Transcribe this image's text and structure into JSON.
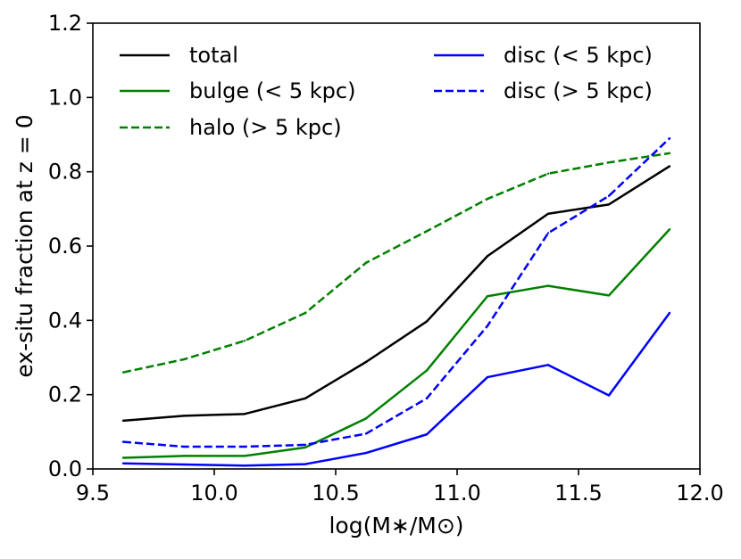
{
  "chart_data": {
    "type": "line",
    "title": "",
    "xlabel": "log(M∗/M⊙)",
    "ylabel": "ex-situ fraction at z = 0",
    "xlim": [
      9.5,
      12.0
    ],
    "ylim": [
      0.0,
      1.2
    ],
    "x_ticks": [
      9.5,
      10.0,
      10.5,
      11.0,
      11.5,
      12.0
    ],
    "x_tick_labels": [
      "9.5",
      "10.0",
      "10.5",
      "11.0",
      "11.5",
      "12.0"
    ],
    "y_ticks": [
      0.0,
      0.2,
      0.4,
      0.6,
      0.8,
      1.0,
      1.2
    ],
    "y_tick_labels": [
      "0.0",
      "0.2",
      "0.4",
      "0.6",
      "0.8",
      "1.0",
      "1.2"
    ],
    "grid": false,
    "legend_position": "top",
    "x": [
      9.625,
      9.875,
      10.125,
      10.375,
      10.625,
      10.875,
      11.125,
      11.375,
      11.625,
      11.875
    ],
    "series": [
      {
        "id": "total",
        "name": "total",
        "color": "#000000",
        "dash": "solid",
        "values": [
          0.13,
          0.143,
          0.148,
          0.19,
          0.288,
          0.397,
          0.573,
          0.687,
          0.712,
          0.815
        ]
      },
      {
        "id": "bulge",
        "name": "bulge (< 5 kpc)",
        "color": "#008000",
        "dash": "solid",
        "values": [
          0.03,
          0.035,
          0.035,
          0.058,
          0.136,
          0.265,
          0.465,
          0.493,
          0.467,
          0.645
        ]
      },
      {
        "id": "halo",
        "name": "halo (> 5 kpc)",
        "color": "#008000",
        "dash": "dashed",
        "values": [
          0.26,
          0.295,
          0.345,
          0.42,
          0.555,
          0.64,
          0.727,
          0.795,
          0.825,
          0.85
        ]
      },
      {
        "id": "disc-inner",
        "name": "disc (< 5 kpc)",
        "color": "#0000ff",
        "dash": "solid",
        "values": [
          0.015,
          0.012,
          0.009,
          0.013,
          0.043,
          0.093,
          0.247,
          0.28,
          0.198,
          0.42
        ]
      },
      {
        "id": "disc-outer",
        "name": "disc (> 5 kpc)",
        "color": "#0000ff",
        "dash": "dashed",
        "values": [
          0.073,
          0.06,
          0.06,
          0.065,
          0.095,
          0.19,
          0.385,
          0.635,
          0.735,
          0.89
        ]
      }
    ],
    "legend": {
      "columns": [
        [
          "total",
          "bulge",
          "halo"
        ],
        [
          "disc-inner",
          "disc-outer"
        ]
      ]
    }
  }
}
